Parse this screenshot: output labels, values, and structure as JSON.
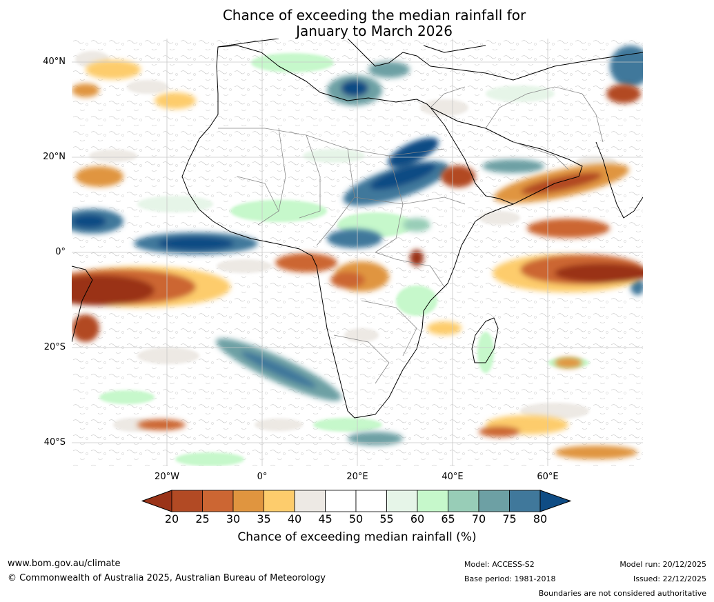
{
  "title": {
    "line1": "Chance of exceeding the median rainfall for",
    "line2": "January to March 2026"
  },
  "map": {
    "lat_labels": [
      "40°N",
      "20°N",
      "0°",
      "20°S",
      "40°S"
    ],
    "lon_labels": [
      "20°W",
      "0°",
      "20°E",
      "40°E",
      "60°E"
    ]
  },
  "colorbar": {
    "ticks": [
      "20",
      "25",
      "30",
      "35",
      "40",
      "45",
      "50",
      "55",
      "60",
      "65",
      "70",
      "75",
      "80"
    ],
    "colors": [
      "#9a3318",
      "#b24a24",
      "#cc6633",
      "#e0953f",
      "#fdcc6c",
      "#ede9e4",
      "#ffffff",
      "#ffffff",
      "#e6f5e8",
      "#c6f8cb",
      "#98cdb7",
      "#6da0a4",
      "#40789b",
      "#0f4c84"
    ],
    "label": "Chance of exceeding median rainfall (%)"
  },
  "footer": {
    "url": "www.bom.gov.au/climate",
    "copyright": "© Commonwealth of Australia 2025, Australian Bureau of Meteorology",
    "model": "Model: ACCESS-S2",
    "base_period": "Base period: 1981-2018",
    "model_run": "Model run: 20/12/2025",
    "issued": "Issued: 22/12/2025",
    "boundaries": "Boundaries are not considered authoritative"
  }
}
